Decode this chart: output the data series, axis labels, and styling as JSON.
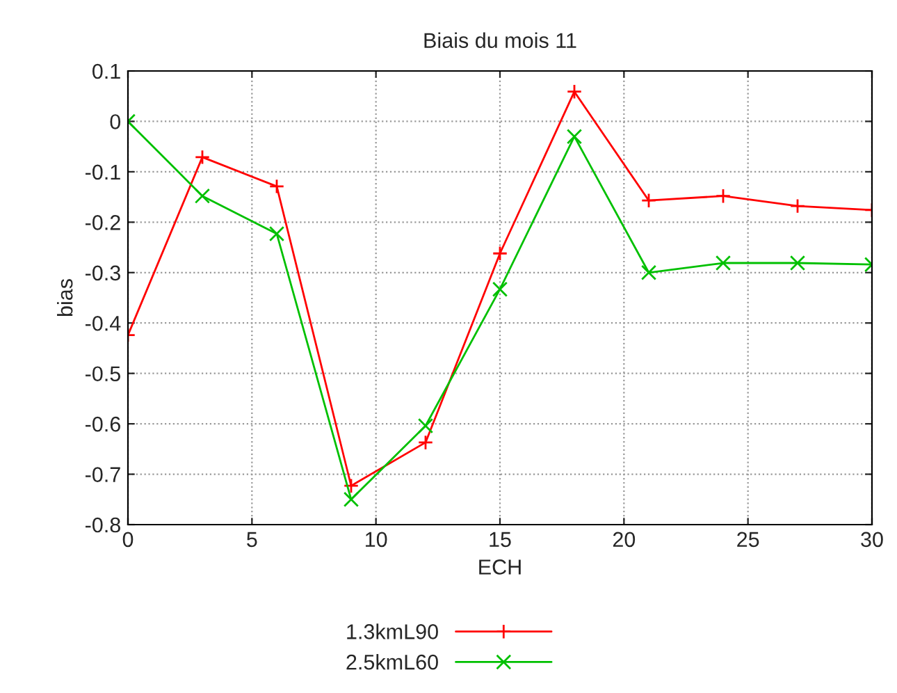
{
  "chart_data": {
    "type": "line",
    "title": "Biais du mois 11",
    "xlabel": "ECH",
    "ylabel": "bias",
    "x": [
      0,
      3,
      6,
      9,
      12,
      15,
      18,
      21,
      24,
      27,
      30
    ],
    "series": [
      {
        "name": "1.3kmL90",
        "color": "#ff0000",
        "marker": "plus",
        "values": [
          -0.424,
          -0.071,
          -0.129,
          -0.723,
          -0.637,
          -0.262,
          0.059,
          -0.157,
          -0.148,
          -0.168,
          -0.176
        ]
      },
      {
        "name": "2.5kmL60",
        "color": "#00c000",
        "marker": "cross",
        "values": [
          0.0,
          -0.148,
          -0.223,
          -0.75,
          -0.604,
          -0.333,
          -0.03,
          -0.3,
          -0.281,
          -0.281,
          -0.284
        ]
      }
    ],
    "xlim": [
      0,
      30
    ],
    "xticks": [
      0,
      5,
      10,
      15,
      20,
      25,
      30
    ],
    "ylim": [
      -0.8,
      0.1
    ],
    "yticks": [
      0.1,
      0,
      -0.1,
      -0.2,
      -0.3,
      -0.4,
      -0.5,
      -0.6,
      -0.7,
      -0.8
    ],
    "grid": true,
    "legend": "bottom",
    "line_style": "solid"
  }
}
